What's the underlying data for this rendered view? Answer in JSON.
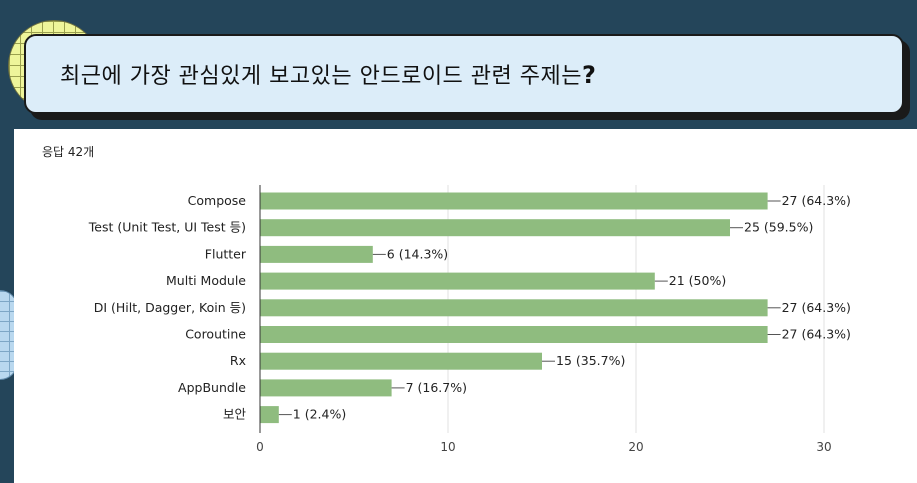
{
  "question": {
    "text": "최근에 가장 관심있게 보고있는 안드로이드 관련 주제는",
    "mark": "?"
  },
  "response_count": "응답 42개",
  "colors": {
    "bar": "#8fbc7f",
    "background": "#24455a",
    "question_box": "#dcedf9"
  },
  "chart_data": {
    "type": "bar",
    "orientation": "horizontal",
    "categories": [
      "Compose",
      "Test (Unit Test, UI Test 등)",
      "Flutter",
      "Multi Module",
      "DI (Hilt, Dagger, Koin 등)",
      "Coroutine",
      "Rx",
      "AppBundle",
      "보안"
    ],
    "values": [
      27,
      25,
      6,
      21,
      27,
      27,
      15,
      7,
      1
    ],
    "data_labels": [
      "27 (64.3%)",
      "25 (59.5%)",
      "6 (14.3%)",
      "21 (50%)",
      "27 (64.3%)",
      "27 (64.3%)",
      "15 (35.7%)",
      "7 (16.7%)",
      "1 (2.4%)"
    ],
    "xlim": [
      0,
      30
    ],
    "xticks": [
      0,
      10,
      20,
      30
    ],
    "grid": true,
    "title": "",
    "xlabel": "",
    "ylabel": ""
  }
}
